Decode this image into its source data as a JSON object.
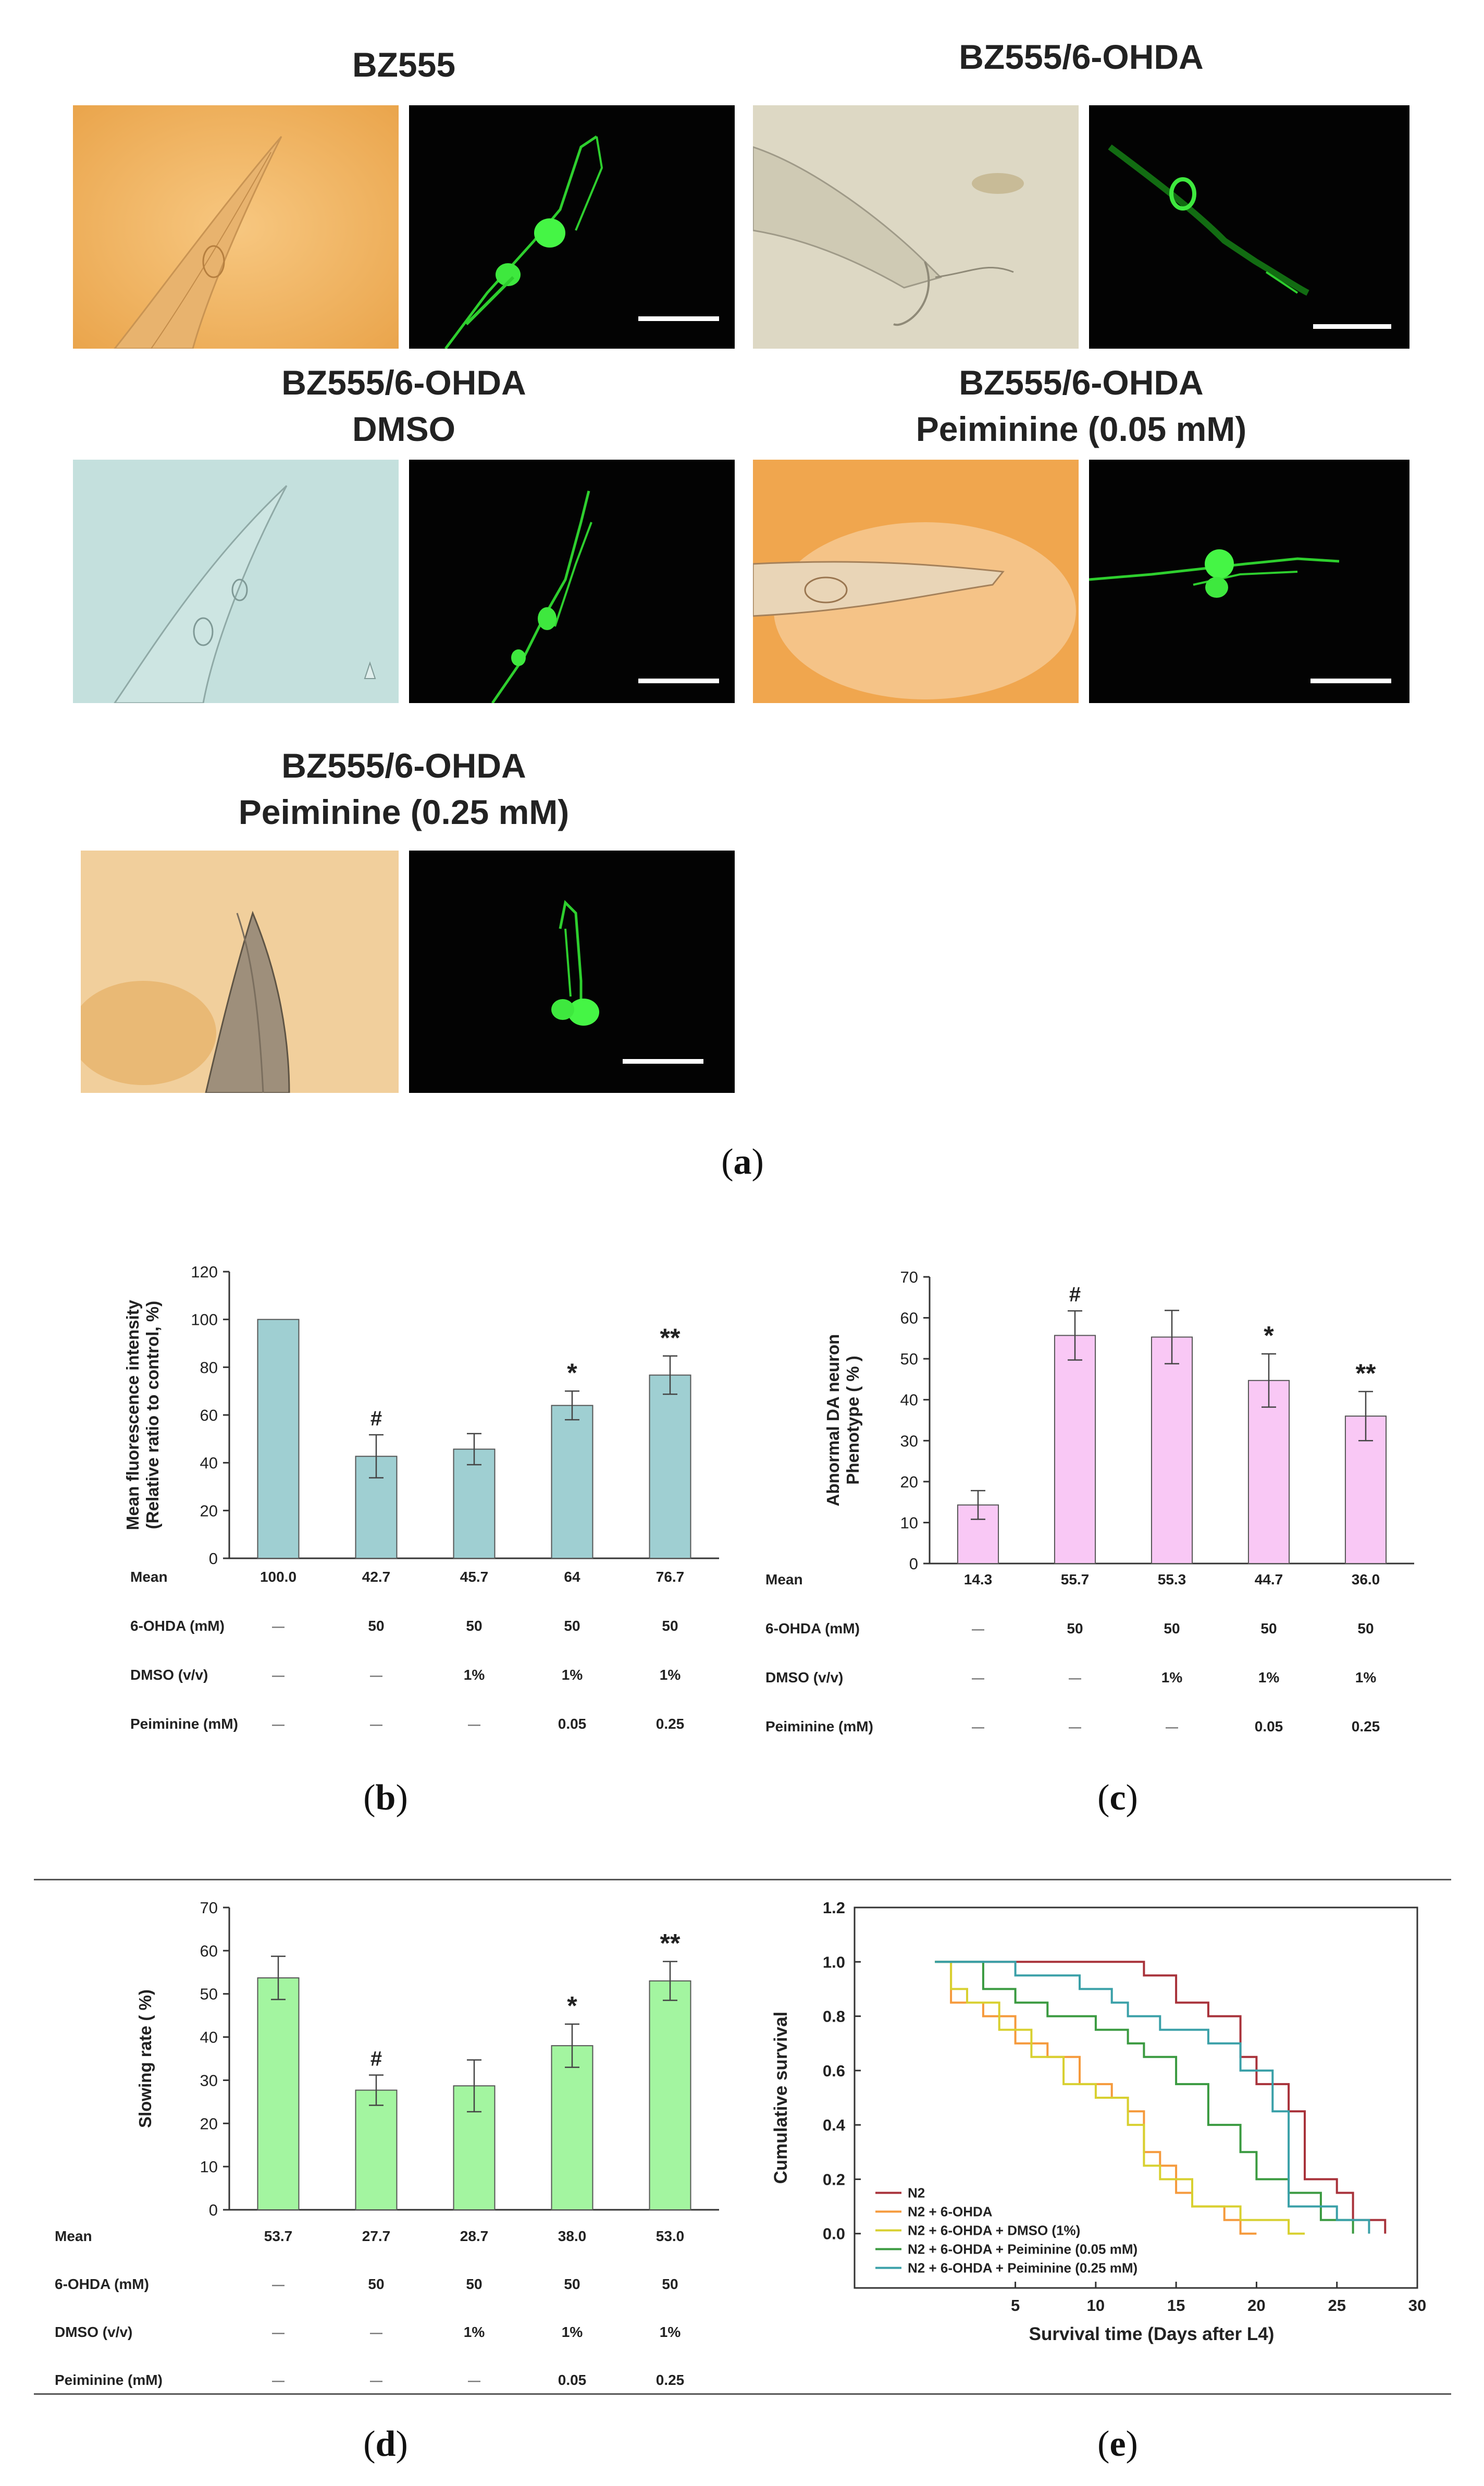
{
  "figure_a": {
    "label": "a",
    "panels": [
      {
        "title": [
          "BZ555"
        ]
      },
      {
        "title": [
          "BZ555/6-OHDA"
        ]
      },
      {
        "title": [
          "BZ555/6-OHDA",
          "DMSO"
        ]
      },
      {
        "title": [
          "BZ555/6-OHDA",
          "Peiminine (0.05 mM)"
        ]
      },
      {
        "title": [
          "BZ555/6-OHDA",
          "Peiminine (0.25 mM)"
        ]
      }
    ],
    "colors": {
      "bf_orange": "#f3b45e",
      "bf_teal": "#c0dedc",
      "bf_gray": "#ddd9c8",
      "fluor_bg": "#030303",
      "gfp": "#3ef03e"
    }
  },
  "chart_data": [
    {
      "id": "b",
      "type": "bar",
      "label": "b",
      "ylabel_lines": [
        "Mean fluorescence intensity",
        "(Relative ratio to control, %)"
      ],
      "ylim": [
        0,
        120
      ],
      "yticks": [
        0,
        20,
        40,
        60,
        80,
        100,
        120
      ],
      "values": [
        100,
        42.7,
        45.7,
        64,
        76.7
      ],
      "errors": [
        0,
        9,
        6.5,
        6,
        8
      ],
      "marks": [
        "",
        "#",
        "",
        "*",
        "**"
      ],
      "color": "#9fcfd2",
      "table": [
        {
          "label": "Mean",
          "cells": [
            "100.0",
            "42.7",
            "45.7",
            "64",
            "76.7"
          ]
        },
        {
          "label": "6-OHDA (mM)",
          "cells": [
            "—",
            "50",
            "50",
            "50",
            "50"
          ]
        },
        {
          "label": "DMSO (v/v)",
          "cells": [
            "—",
            "—",
            "1%",
            "1%",
            "1%"
          ]
        },
        {
          "label": "Peiminine  (mM)",
          "cells": [
            "—",
            "—",
            "—",
            "0.05",
            "0.25"
          ]
        }
      ]
    },
    {
      "id": "c",
      "type": "bar",
      "label": "c",
      "ylabel_lines": [
        "Abnormal DA neuron",
        "Phenotype ( % )"
      ],
      "ylim": [
        0,
        70
      ],
      "yticks": [
        0,
        10,
        20,
        30,
        40,
        50,
        60,
        70
      ],
      "values": [
        14.3,
        55.7,
        55.3,
        44.7,
        36.0
      ],
      "errors": [
        3.5,
        6,
        6.5,
        6.5,
        6
      ],
      "marks": [
        "",
        "#",
        "",
        "*",
        "**"
      ],
      "color": "#f9c8f5",
      "table": [
        {
          "label": "Mean",
          "cells": [
            "14.3",
            "55.7",
            "55.3",
            "44.7",
            "36.0"
          ]
        },
        {
          "label": "6-OHDA (mM)",
          "cells": [
            "—",
            "50",
            "50",
            "50",
            "50"
          ]
        },
        {
          "label": "DMSO (v/v)",
          "cells": [
            "—",
            "—",
            "1%",
            "1%",
            "1%"
          ]
        },
        {
          "label": "Peiminine  (mM)",
          "cells": [
            "—",
            "—",
            "—",
            "0.05",
            "0.25"
          ]
        }
      ]
    },
    {
      "id": "d",
      "type": "bar",
      "label": "d",
      "ylabel_lines": [
        "Slowing rate ( %)"
      ],
      "ylim": [
        0,
        70
      ],
      "yticks": [
        0,
        10,
        20,
        30,
        40,
        50,
        60,
        70
      ],
      "values": [
        53.7,
        27.7,
        28.7,
        38.0,
        53.0
      ],
      "errors": [
        5,
        3.5,
        6,
        5,
        4.5
      ],
      "marks": [
        "",
        "#",
        "",
        "*",
        "**"
      ],
      "color": "#a3f5a0",
      "table": [
        {
          "label": "Mean",
          "cells": [
            "53.7",
            "27.7",
            "28.7",
            "38.0",
            "53.0"
          ]
        },
        {
          "label": "6-OHDA (mM)",
          "cells": [
            "—",
            "50",
            "50",
            "50",
            "50"
          ]
        },
        {
          "label": "DMSO (v/v)",
          "cells": [
            "—",
            "—",
            "1%",
            "1%",
            "1%"
          ]
        },
        {
          "label": "Peiminine  (mM)",
          "cells": [
            "—",
            "—",
            "—",
            "0.05",
            "0.25"
          ]
        }
      ]
    },
    {
      "id": "e",
      "type": "line",
      "label": "e",
      "xlabel": "Survival time (Days after L4)",
      "ylabel": "Cumulative survival",
      "xlim": [
        -5,
        30
      ],
      "xticks": [
        5,
        10,
        15,
        20,
        25,
        30
      ],
      "ylim": [
        -0.2,
        1.2
      ],
      "yticks": [
        0.0,
        0.2,
        0.4,
        0.6,
        0.8,
        1.0,
        1.2
      ],
      "legend_position": "bottom-left",
      "series": [
        {
          "name": "N2",
          "color": "#a8323a",
          "steps": [
            [
              0,
              1.0
            ],
            [
              13,
              1.0
            ],
            [
              13,
              0.95
            ],
            [
              15,
              0.95
            ],
            [
              15,
              0.85
            ],
            [
              17,
              0.85
            ],
            [
              17,
              0.8
            ],
            [
              19,
              0.8
            ],
            [
              19,
              0.65
            ],
            [
              20,
              0.65
            ],
            [
              20,
              0.55
            ],
            [
              22,
              0.55
            ],
            [
              22,
              0.45
            ],
            [
              23,
              0.45
            ],
            [
              23,
              0.2
            ],
            [
              25,
              0.2
            ],
            [
              25,
              0.15
            ],
            [
              26,
              0.15
            ],
            [
              26,
              0.05
            ],
            [
              28,
              0.05
            ],
            [
              28,
              0.0
            ]
          ]
        },
        {
          "name": "N2 + 6-OHDA",
          "color": "#f59a3c",
          "steps": [
            [
              0,
              1.0
            ],
            [
              1,
              1.0
            ],
            [
              1,
              0.85
            ],
            [
              3,
              0.85
            ],
            [
              3,
              0.8
            ],
            [
              5,
              0.8
            ],
            [
              5,
              0.7
            ],
            [
              7,
              0.7
            ],
            [
              7,
              0.65
            ],
            [
              9,
              0.65
            ],
            [
              9,
              0.55
            ],
            [
              11,
              0.55
            ],
            [
              11,
              0.5
            ],
            [
              12,
              0.5
            ],
            [
              12,
              0.45
            ],
            [
              13,
              0.45
            ],
            [
              13,
              0.3
            ],
            [
              14,
              0.3
            ],
            [
              14,
              0.25
            ],
            [
              15,
              0.25
            ],
            [
              15,
              0.15
            ],
            [
              16,
              0.15
            ],
            [
              16,
              0.1
            ],
            [
              18,
              0.1
            ],
            [
              18,
              0.05
            ],
            [
              19,
              0.05
            ],
            [
              19,
              0.0
            ],
            [
              20,
              0.0
            ]
          ]
        },
        {
          "name": "N2 + 6-OHDA + DMSO (1%)",
          "color": "#d8d030",
          "steps": [
            [
              0,
              1.0
            ],
            [
              1,
              1.0
            ],
            [
              1,
              0.9
            ],
            [
              2,
              0.9
            ],
            [
              2,
              0.85
            ],
            [
              4,
              0.85
            ],
            [
              4,
              0.75
            ],
            [
              6,
              0.75
            ],
            [
              6,
              0.65
            ],
            [
              8,
              0.65
            ],
            [
              8,
              0.55
            ],
            [
              10,
              0.55
            ],
            [
              10,
              0.5
            ],
            [
              12,
              0.5
            ],
            [
              12,
              0.4
            ],
            [
              13,
              0.4
            ],
            [
              13,
              0.25
            ],
            [
              14,
              0.25
            ],
            [
              14,
              0.2
            ],
            [
              16,
              0.2
            ],
            [
              16,
              0.1
            ],
            [
              19,
              0.1
            ],
            [
              19,
              0.05
            ],
            [
              22,
              0.05
            ],
            [
              22,
              0.0
            ],
            [
              23,
              0.0
            ]
          ]
        },
        {
          "name": "N2 + 6-OHDA + Peiminine (0.05 mM)",
          "color": "#3a9a40",
          "steps": [
            [
              0,
              1.0
            ],
            [
              3,
              1.0
            ],
            [
              3,
              0.9
            ],
            [
              5,
              0.9
            ],
            [
              5,
              0.85
            ],
            [
              7,
              0.85
            ],
            [
              7,
              0.8
            ],
            [
              10,
              0.8
            ],
            [
              10,
              0.75
            ],
            [
              12,
              0.75
            ],
            [
              12,
              0.7
            ],
            [
              13,
              0.7
            ],
            [
              13,
              0.65
            ],
            [
              15,
              0.65
            ],
            [
              15,
              0.55
            ],
            [
              17,
              0.55
            ],
            [
              17,
              0.4
            ],
            [
              19,
              0.4
            ],
            [
              19,
              0.3
            ],
            [
              20,
              0.3
            ],
            [
              20,
              0.2
            ],
            [
              22,
              0.2
            ],
            [
              22,
              0.15
            ],
            [
              24,
              0.15
            ],
            [
              24,
              0.05
            ],
            [
              26,
              0.05
            ],
            [
              26,
              0.0
            ]
          ]
        },
        {
          "name": "N2 + 6-OHDA + Peiminine (0.25 mM)",
          "color": "#3aa0a8",
          "steps": [
            [
              0,
              1.0
            ],
            [
              5,
              1.0
            ],
            [
              5,
              0.95
            ],
            [
              9,
              0.95
            ],
            [
              9,
              0.9
            ],
            [
              11,
              0.9
            ],
            [
              11,
              0.85
            ],
            [
              12,
              0.85
            ],
            [
              12,
              0.8
            ],
            [
              14,
              0.8
            ],
            [
              14,
              0.75
            ],
            [
              17,
              0.75
            ],
            [
              17,
              0.7
            ],
            [
              19,
              0.7
            ],
            [
              19,
              0.6
            ],
            [
              21,
              0.6
            ],
            [
              21,
              0.45
            ],
            [
              22,
              0.45
            ],
            [
              22,
              0.1
            ],
            [
              25,
              0.1
            ],
            [
              25,
              0.05
            ],
            [
              27,
              0.05
            ],
            [
              27,
              0.0
            ]
          ]
        }
      ]
    }
  ]
}
